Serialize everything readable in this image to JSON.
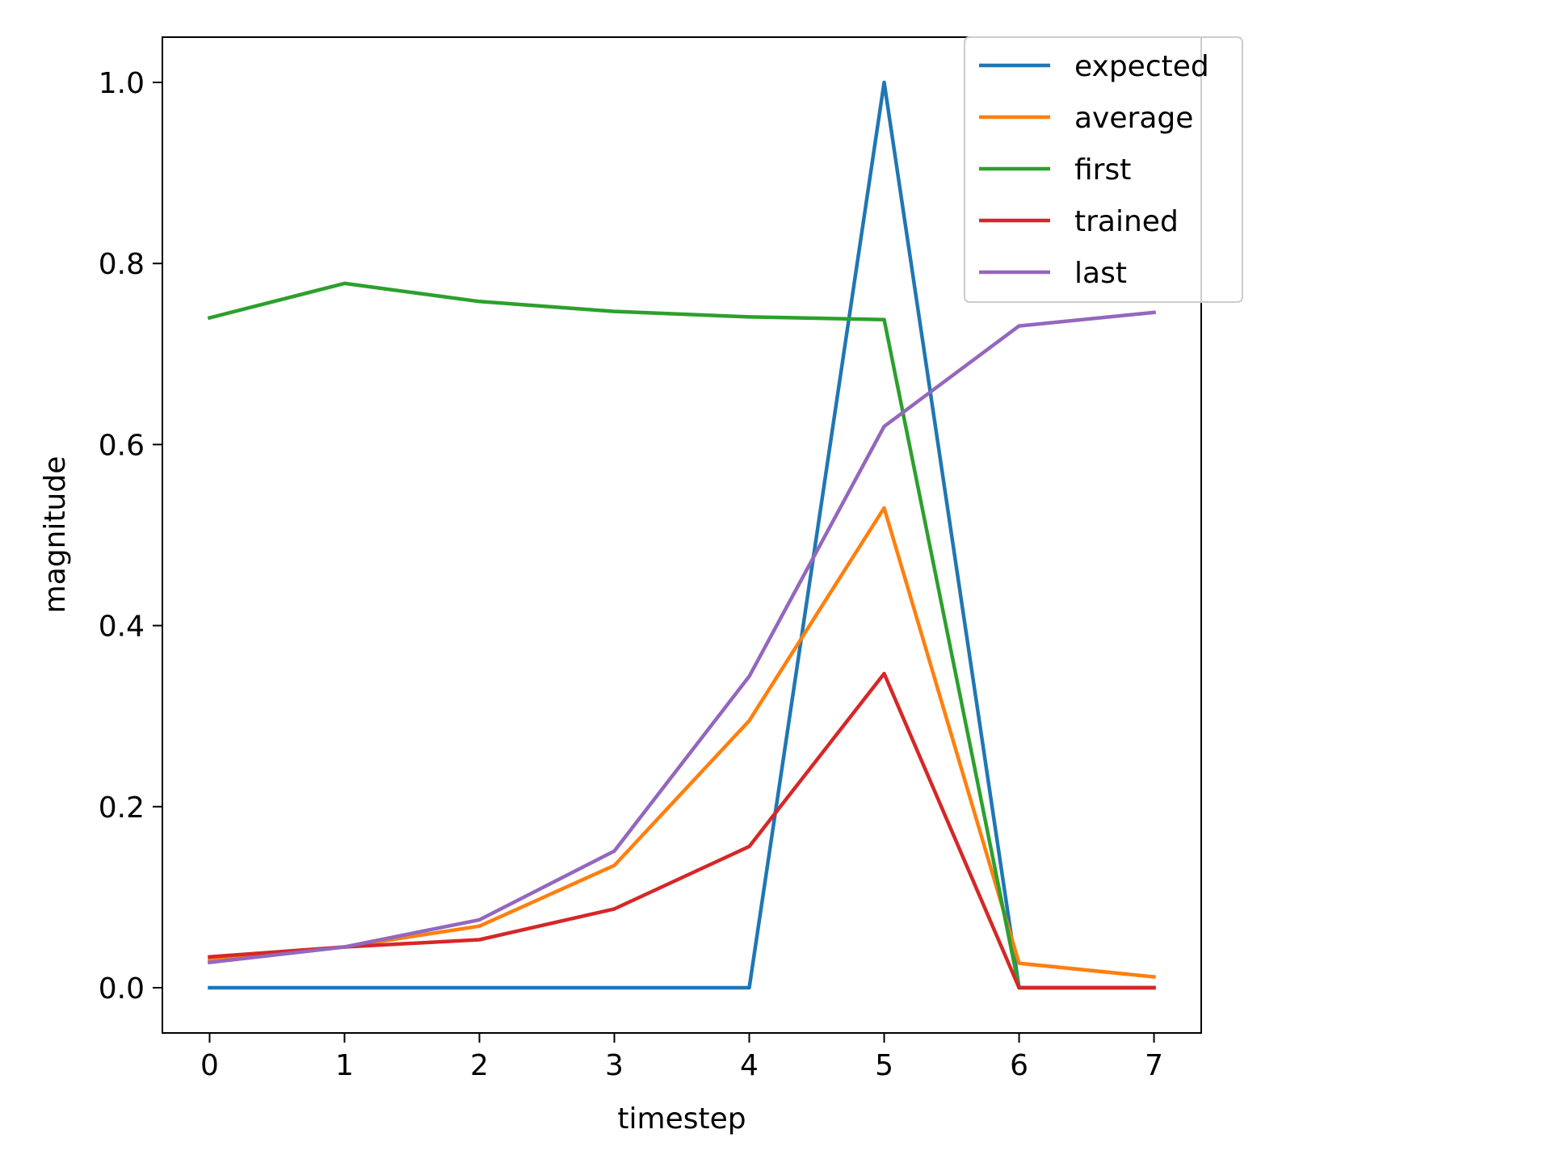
{
  "chart_data": {
    "type": "line",
    "xlabel": "timestep",
    "ylabel": "magnitude",
    "x": [
      0,
      1,
      2,
      3,
      4,
      5,
      6,
      7
    ],
    "xlim": [
      -0.35,
      7.35
    ],
    "ylim": [
      -0.05,
      1.05
    ],
    "xticks": [
      "0",
      "1",
      "2",
      "3",
      "4",
      "5",
      "6",
      "7"
    ],
    "yticks": [
      "0.0",
      "0.2",
      "0.4",
      "0.6",
      "0.8",
      "1.0"
    ],
    "grid": false,
    "legend_position": "top-right",
    "series": [
      {
        "name": "expected",
        "color": "#1f77b4",
        "values": [
          0.0,
          0.0,
          0.0,
          0.0,
          0.0,
          1.0,
          0.0,
          0.0
        ]
      },
      {
        "name": "average",
        "color": "#ff7f0e",
        "values": [
          0.03,
          0.045,
          0.068,
          0.135,
          0.295,
          0.53,
          0.027,
          0.012
        ]
      },
      {
        "name": "first",
        "color": "#2ca02c",
        "values": [
          0.74,
          0.778,
          0.758,
          0.747,
          0.741,
          0.738,
          0.0,
          0.0
        ]
      },
      {
        "name": "trained",
        "color": "#d62728",
        "values": [
          0.034,
          0.045,
          0.053,
          0.087,
          0.156,
          0.347,
          0.0,
          0.0
        ]
      },
      {
        "name": "last",
        "color": "#9467bd",
        "values": [
          0.028,
          0.045,
          0.075,
          0.151,
          0.344,
          0.62,
          0.731,
          0.746
        ]
      }
    ]
  }
}
